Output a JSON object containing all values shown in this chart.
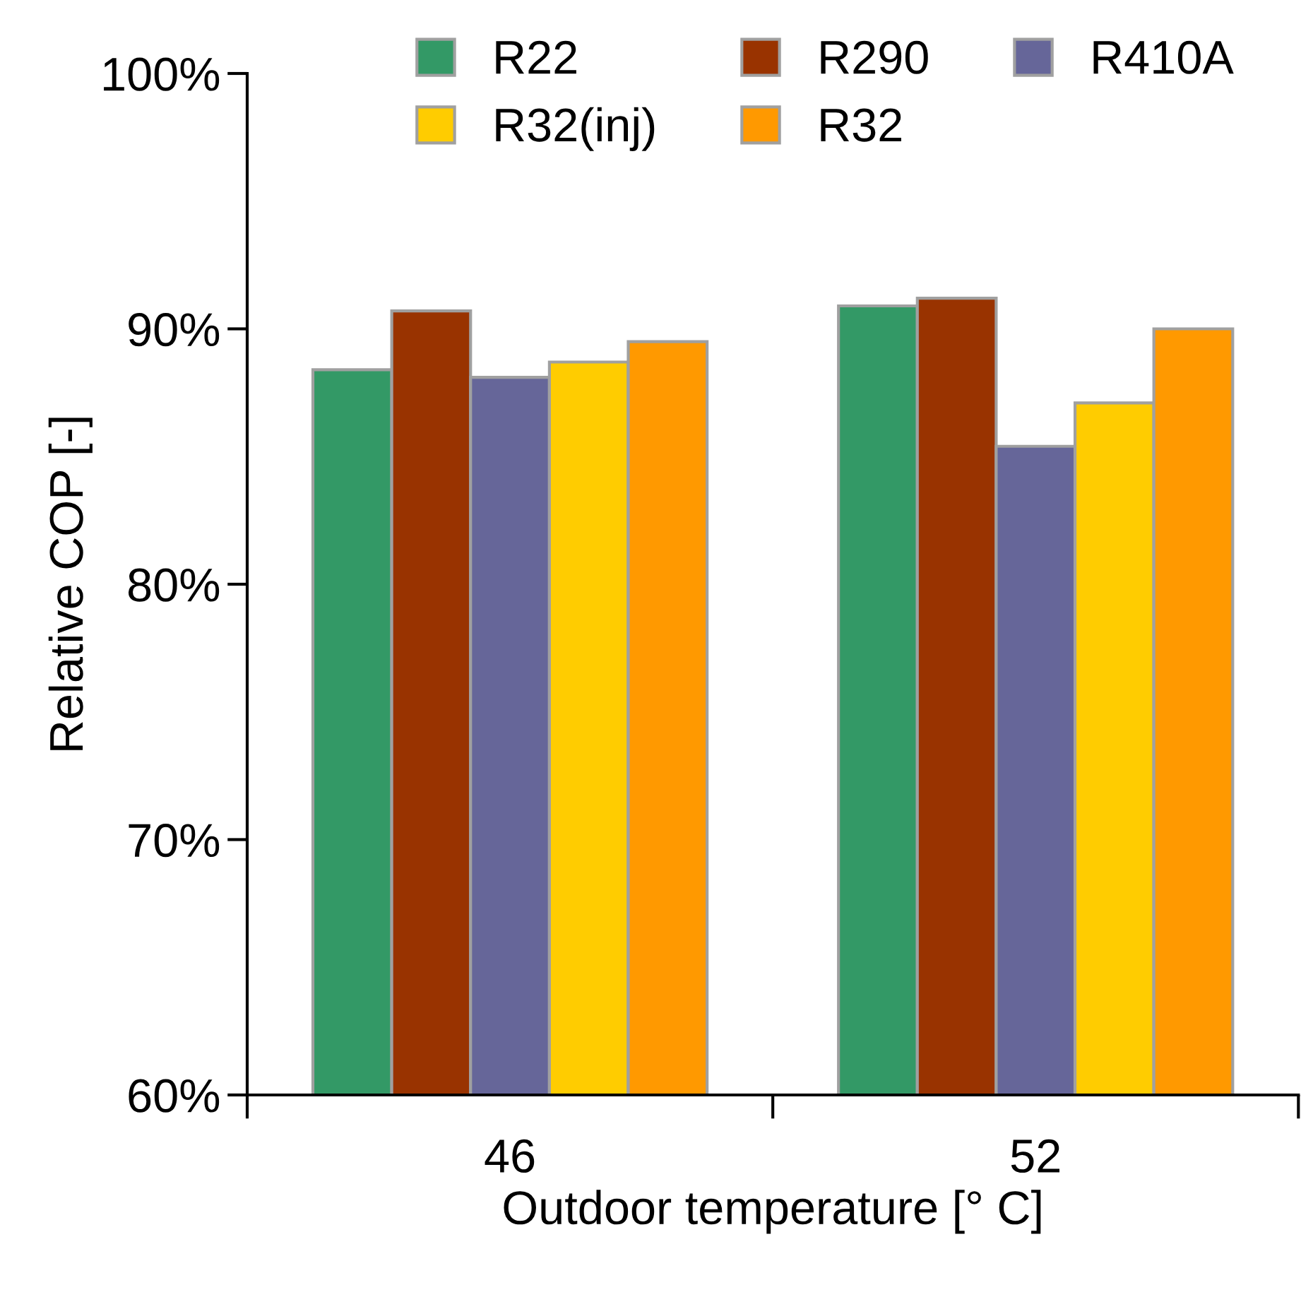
{
  "chart_data": {
    "type": "bar",
    "xlabel": "Outdoor temperature [° C]",
    "ylabel": "Relative COP [-]",
    "categories": [
      "46",
      "52"
    ],
    "series": [
      {
        "name": "R22",
        "color": "#339966",
        "values": [
          88.4,
          90.9
        ]
      },
      {
        "name": "R290",
        "color": "#993300",
        "values": [
          90.7,
          91.2
        ]
      },
      {
        "name": "R410A",
        "color": "#666699",
        "values": [
          88.1,
          85.4
        ]
      },
      {
        "name": "R32(inj)",
        "color": "#ffcc00",
        "values": [
          88.7,
          87.1
        ]
      },
      {
        "name": "R32",
        "color": "#ff9900",
        "values": [
          89.5,
          90.0
        ]
      }
    ],
    "ylim": [
      60,
      100
    ],
    "yticks": [
      {
        "value": 60,
        "label": "60%"
      },
      {
        "value": 70,
        "label": "70%"
      },
      {
        "value": 80,
        "label": "80%"
      },
      {
        "value": 90,
        "label": "90%"
      },
      {
        "value": 100,
        "label": "100%"
      }
    ],
    "grid": false,
    "legend": "top"
  }
}
